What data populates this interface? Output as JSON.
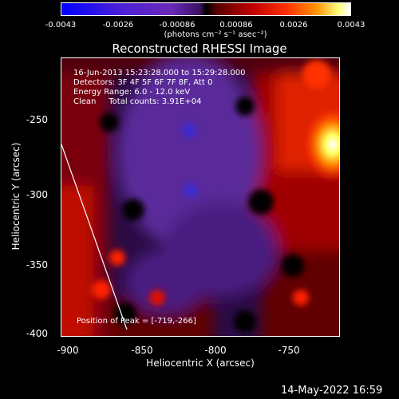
{
  "colorbar": {
    "ticks": [
      "-0.0043",
      "-0.0026",
      "-0.00086",
      "0.00086",
      "0.0026",
      "0.0043"
    ],
    "unit": "(photons cm⁻² s⁻¹ asec⁻²)"
  },
  "title": "Reconstructed RHESSI Image",
  "info": {
    "time": "16-Jun-2013 15:23:28.000 to 15:29:28.000",
    "detectors": "Detectors: 3F 4F 5F 6F 7F 8F, Att 0",
    "energy": "Energy Range: 6.0 - 12.0 keV",
    "clean": "Clean     Total counts: 3.91E+04"
  },
  "peak": "Position of Peak = [-719,-266]",
  "axes": {
    "xlabel": "Heliocentric X (arcsec)",
    "ylabel": "Heliocentric Y (arcsec)",
    "xticks": [
      "-900",
      "-850",
      "-800",
      "-750"
    ],
    "yticks": [
      "-250",
      "-300",
      "-350",
      "-400"
    ]
  },
  "footer_date": "14-May-2022 16:59"
}
